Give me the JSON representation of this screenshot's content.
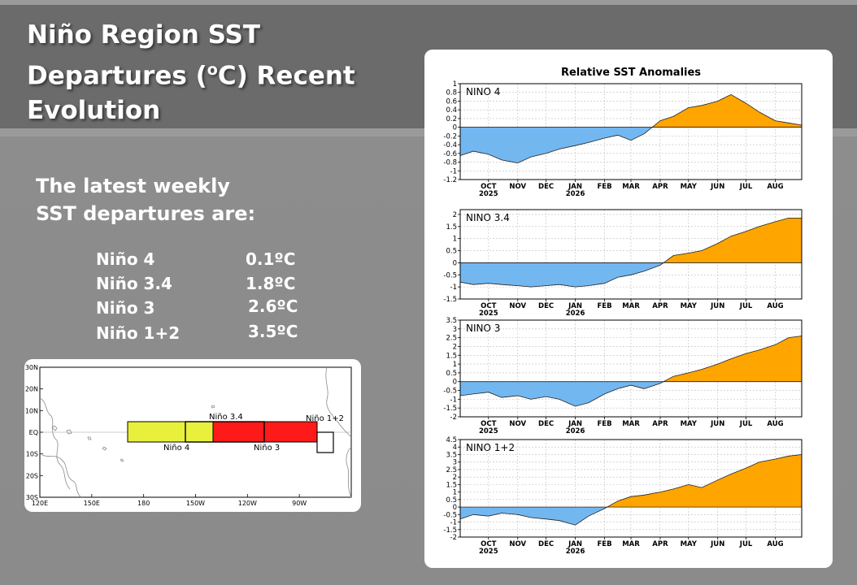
{
  "slide": {
    "title_line1": "Niño Region SST",
    "title_line2_pre": "Departures (",
    "title_sup": "o",
    "title_line2_post": "C) Recent",
    "title_line3": "Evolution",
    "latest_line1": "The latest weekly",
    "latest_line2": "SST departures are:",
    "regions": [
      {
        "name": "Niño 4",
        "value": "0.1ºC"
      },
      {
        "name": "Niño 3.4",
        "value": "1.8ºC"
      },
      {
        "name": "Niño 3",
        "value": "2.6ºC"
      },
      {
        "name": "Niño 1+2",
        "value": "3.5ºC"
      }
    ]
  },
  "map": {
    "lat_labels": [
      "30N",
      "20N",
      "10N",
      "EQ",
      "10S",
      "20S",
      "30S"
    ],
    "lon_labels": [
      "120E",
      "150E",
      "180",
      "150W",
      "120W",
      "90W"
    ],
    "box_labels": {
      "nino4": "Niño 4",
      "nino34": "Niño 3.4",
      "nino3": "Niño 3",
      "nino12": "Niño 1+2"
    },
    "colors": {
      "nino4": "#e8f03c",
      "nino3": "#ff1a1a"
    }
  },
  "chart_data": {
    "type": "area",
    "title": "Relative SST Anomalies",
    "colors": {
      "positive": "#ffa500",
      "negative": "#73b7f0"
    },
    "month_labels": [
      "OCT",
      "NOV",
      "DEC",
      "JAN",
      "FEB",
      "MAR",
      "APR",
      "MAY",
      "JUN",
      "JUL",
      "AUG"
    ],
    "year_labels": [
      "2025",
      "2026"
    ],
    "x": [
      "2025-09-01",
      "2025-09-15",
      "2025-10-01",
      "2025-10-15",
      "2025-11-01",
      "2025-11-15",
      "2025-12-01",
      "2025-12-15",
      "2026-01-01",
      "2026-01-15",
      "2026-02-01",
      "2026-02-15",
      "2026-03-01",
      "2026-03-15",
      "2026-04-01",
      "2026-04-15",
      "2026-05-01",
      "2026-05-15",
      "2026-06-01",
      "2026-06-15",
      "2026-07-01",
      "2026-07-15",
      "2026-08-01",
      "2026-08-15",
      "2026-08-29"
    ],
    "panels": [
      {
        "name": "NINO 4",
        "ylim": [
          -1.2,
          1
        ],
        "ticks": [
          "1",
          "0.8",
          "0.6",
          "0.4",
          "0.2",
          "0",
          "-0.2",
          "-0.4",
          "-0.6",
          "-0.8",
          "-1",
          "-1.2"
        ],
        "tick_values": [
          1,
          0.8,
          0.6,
          0.4,
          0.2,
          0,
          -0.2,
          -0.4,
          -0.6,
          -0.8,
          -1,
          -1.2
        ],
        "values": [
          -0.65,
          -0.55,
          -0.62,
          -0.75,
          -0.82,
          -0.68,
          -0.6,
          -0.5,
          -0.42,
          -0.35,
          -0.25,
          -0.18,
          -0.3,
          -0.15,
          0.15,
          0.25,
          0.45,
          0.5,
          0.6,
          0.75,
          0.55,
          0.35,
          0.15,
          0.1,
          0.05
        ]
      },
      {
        "name": "NINO 3.4",
        "ylim": [
          -1.5,
          2.2
        ],
        "ticks": [
          "2",
          "1.5",
          "1",
          "0.5",
          "0",
          "-0.5",
          "-1",
          "-1.5"
        ],
        "tick_values": [
          2,
          1.5,
          1,
          0.5,
          0,
          -0.5,
          -1,
          -1.5
        ],
        "values": [
          -0.8,
          -0.9,
          -0.85,
          -0.9,
          -0.95,
          -1.0,
          -0.95,
          -0.9,
          -1.0,
          -0.95,
          -0.85,
          -0.6,
          -0.5,
          -0.35,
          -0.1,
          0.3,
          0.4,
          0.5,
          0.8,
          1.1,
          1.3,
          1.5,
          1.7,
          1.85,
          1.85
        ]
      },
      {
        "name": "NINO 3",
        "ylim": [
          -2,
          3.5
        ],
        "ticks": [
          "3.5",
          "3",
          "2.5",
          "2",
          "1.5",
          "1",
          "0.5",
          "0",
          "-0.5",
          "-1",
          "-1.5",
          "-2"
        ],
        "tick_values": [
          3.5,
          3,
          2.5,
          2,
          1.5,
          1,
          0.5,
          0,
          -0.5,
          -1,
          -1.5,
          -2
        ],
        "values": [
          -0.8,
          -0.7,
          -0.6,
          -0.9,
          -0.8,
          -1.0,
          -0.85,
          -1.0,
          -1.4,
          -1.2,
          -0.7,
          -0.4,
          -0.2,
          -0.4,
          -0.1,
          0.3,
          0.5,
          0.7,
          1.0,
          1.3,
          1.6,
          1.8,
          2.1,
          2.5,
          2.6
        ]
      },
      {
        "name": "NINO 1+2",
        "ylim": [
          -2,
          4.5
        ],
        "ticks": [
          "4.5",
          "4",
          "3.5",
          "3",
          "2.5",
          "2",
          "1.5",
          "1",
          "0.5",
          "0",
          "-0.5",
          "-1",
          "-1.5",
          "-2"
        ],
        "tick_values": [
          4.5,
          4,
          3.5,
          3,
          2.5,
          2,
          1.5,
          1,
          0.5,
          0,
          -0.5,
          -1,
          -1.5,
          -2
        ],
        "values": [
          -0.8,
          -0.5,
          -0.6,
          -0.4,
          -0.5,
          -0.7,
          -0.8,
          -0.9,
          -1.2,
          -0.6,
          -0.1,
          0.4,
          0.7,
          0.8,
          1.0,
          1.2,
          1.5,
          1.3,
          1.8,
          2.2,
          2.6,
          3.0,
          3.2,
          3.4,
          3.5
        ]
      }
    ]
  }
}
